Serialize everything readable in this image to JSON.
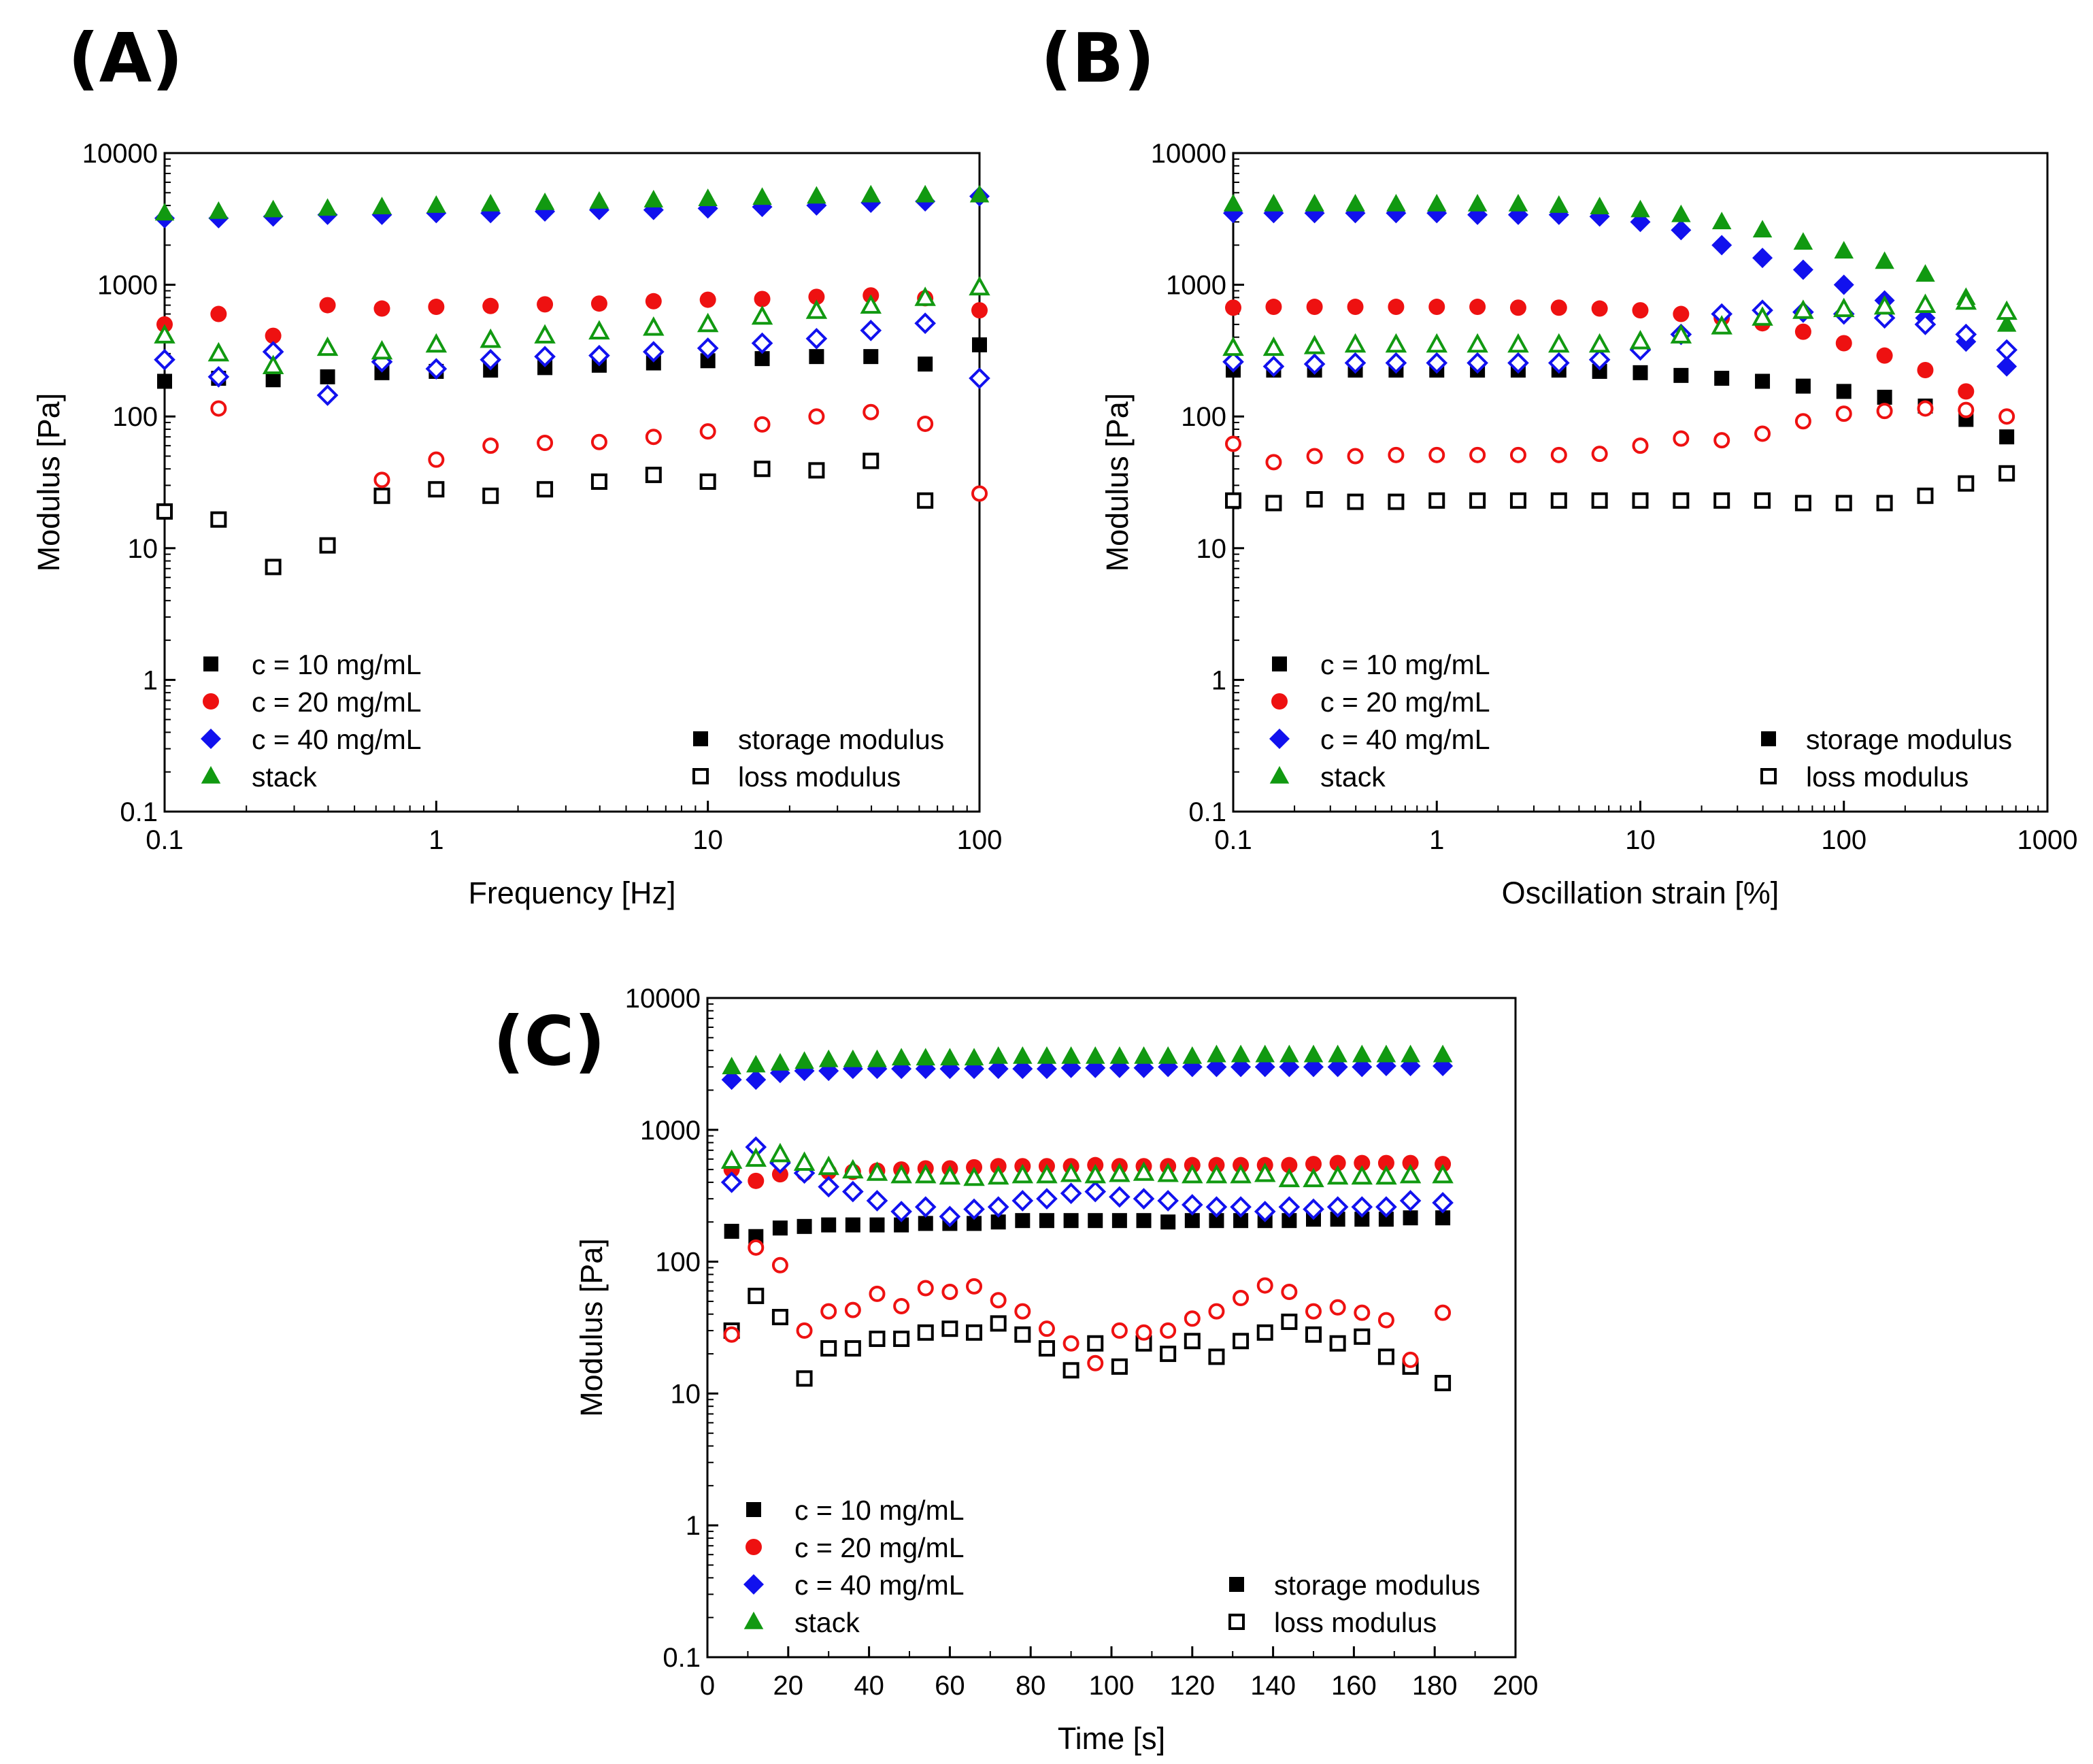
{
  "colors": {
    "c10": "#000000",
    "c20": "#ee1111",
    "c40": "#1111ee",
    "stack": "#119911"
  },
  "chart_data": [
    {
      "panel": "(A)",
      "type": "scatter",
      "xlabel": "Frequency [Hz]",
      "ylabel": "Modulus [Pa]",
      "xscale": "log",
      "yscale": "log",
      "xlim": [
        0.1,
        100
      ],
      "ylim": [
        0.1,
        10000
      ],
      "xticks": [
        "0.1",
        "1",
        "10",
        "100"
      ],
      "yticks": [
        "0.1",
        "1",
        "10",
        "100",
        "1000",
        "10000"
      ],
      "grid": false,
      "legend_series": [
        "c = 10 mg/mL",
        "c = 20 mg/mL",
        "c = 40 mg/mL",
        "stack"
      ],
      "legend_markers": [
        "storage modulus",
        "loss modulus"
      ],
      "x": [
        0.1,
        0.158,
        0.251,
        0.398,
        0.631,
        1,
        1.585,
        2.512,
        3.981,
        6.31,
        10,
        15.85,
        25.12,
        39.81,
        63.1,
        100
      ],
      "series": [
        {
          "name": "c = 10 mg/mL",
          "modulus": "storage",
          "color": "c10",
          "marker": "square",
          "values": [
            185,
            195,
            190,
            200,
            215,
            220,
            225,
            235,
            245,
            255,
            265,
            275,
            285,
            285,
            250,
            350
          ]
        },
        {
          "name": "c = 10 mg/mL",
          "modulus": "loss",
          "color": "c10",
          "marker": "square",
          "values": [
            19,
            16.5,
            7.2,
            10.5,
            25,
            28,
            25,
            28,
            32,
            36,
            32,
            40,
            39,
            46,
            23,
            null
          ]
        },
        {
          "name": "c = 20 mg/mL",
          "modulus": "storage",
          "color": "c20",
          "marker": "circle",
          "values": [
            500,
            600,
            410,
            700,
            660,
            680,
            690,
            710,
            720,
            750,
            770,
            780,
            810,
            830,
            790,
            640
          ]
        },
        {
          "name": "c = 20 mg/mL",
          "modulus": "loss",
          "color": "c20",
          "marker": "circle",
          "values": [
            null,
            115,
            null,
            null,
            33,
            47,
            60,
            63,
            64,
            70,
            77,
            87,
            100,
            108,
            88,
            26
          ]
        },
        {
          "name": "c = 40 mg/mL",
          "modulus": "storage",
          "color": "c40",
          "marker": "diamond",
          "values": [
            3200,
            3200,
            3300,
            3400,
            3400,
            3500,
            3500,
            3600,
            3700,
            3700,
            3800,
            3900,
            4000,
            4200,
            4300,
            4700
          ]
        },
        {
          "name": "c = 40 mg/mL",
          "modulus": "loss",
          "color": "c40",
          "marker": "diamond",
          "values": [
            270,
            200,
            310,
            145,
            260,
            230,
            270,
            285,
            290,
            310,
            330,
            360,
            390,
            450,
            510,
            195
          ]
        },
        {
          "name": "stack",
          "modulus": "storage",
          "color": "stack",
          "marker": "triangle",
          "values": [
            3500,
            3600,
            3700,
            3800,
            3900,
            4000,
            4100,
            4200,
            4300,
            4400,
            4500,
            4600,
            4700,
            4800,
            4800,
            4800
          ]
        },
        {
          "name": "stack",
          "modulus": "loss",
          "color": "stack",
          "marker": "triangle",
          "values": [
            410,
            300,
            240,
            330,
            310,
            350,
            380,
            410,
            440,
            470,
            500,
            570,
            630,
            690,
            790,
            950
          ]
        }
      ]
    },
    {
      "panel": "(B)",
      "type": "scatter",
      "xlabel": "Oscillation strain [%]",
      "ylabel": "Modulus [Pa]",
      "xscale": "log",
      "yscale": "log",
      "xlim": [
        0.1,
        1000
      ],
      "ylim": [
        0.1,
        10000
      ],
      "xticks": [
        "0.1",
        "1",
        "10",
        "100",
        "1000"
      ],
      "yticks": [
        "0.1",
        "1",
        "10",
        "100",
        "1000",
        "10000"
      ],
      "grid": false,
      "legend_series": [
        "c = 10 mg/mL",
        "c = 20 mg/mL",
        "c = 40 mg/mL",
        "stack"
      ],
      "legend_markers": [
        "storage modulus",
        "loss modulus"
      ],
      "x": [
        0.1,
        0.158,
        0.251,
        0.398,
        0.631,
        1,
        1.585,
        2.512,
        3.981,
        6.31,
        10,
        15.85,
        25.12,
        39.81,
        63.1,
        100,
        158.5,
        251.2,
        398.1,
        631
      ],
      "series": [
        {
          "name": "c = 10 mg/mL",
          "modulus": "storage",
          "color": "c10",
          "marker": "square",
          "values": [
            225,
            225,
            225,
            225,
            225,
            225,
            225,
            225,
            225,
            220,
            215,
            205,
            195,
            185,
            170,
            155,
            140,
            120,
            95,
            70
          ]
        },
        {
          "name": "c = 10 mg/mL",
          "modulus": "loss",
          "color": "c10",
          "marker": "square",
          "values": [
            23,
            22,
            23.5,
            22.5,
            22.5,
            23,
            23,
            23,
            23,
            23,
            23,
            23,
            23,
            23,
            22,
            22,
            22,
            25,
            31,
            37
          ]
        },
        {
          "name": "c = 20 mg/mL",
          "modulus": "storage",
          "color": "c20",
          "marker": "circle",
          "values": [
            670,
            680,
            680,
            680,
            680,
            680,
            680,
            670,
            670,
            660,
            640,
            600,
            560,
            510,
            440,
            360,
            290,
            225,
            155,
            null
          ]
        },
        {
          "name": "c = 20 mg/mL",
          "modulus": "loss",
          "color": "c20",
          "marker": "circle",
          "values": [
            62,
            45,
            50,
            50,
            51,
            51,
            51,
            51,
            51,
            52,
            60,
            68,
            66,
            74,
            92,
            105,
            110,
            115,
            112,
            100
          ]
        },
        {
          "name": "c = 40 mg/mL",
          "modulus": "storage",
          "color": "c40",
          "marker": "diamond",
          "values": [
            3500,
            3500,
            3500,
            3500,
            3500,
            3500,
            3400,
            3400,
            3400,
            3300,
            3000,
            2600,
            2000,
            1600,
            1300,
            1000,
            760,
            560,
            370,
            240
          ]
        },
        {
          "name": "c = 40 mg/mL",
          "modulus": "loss",
          "color": "c40",
          "marker": "diamond",
          "values": [
            260,
            240,
            250,
            255,
            255,
            255,
            255,
            255,
            255,
            270,
            320,
            420,
            600,
            640,
            620,
            600,
            560,
            500,
            420,
            320
          ]
        },
        {
          "name": "stack",
          "modulus": "storage",
          "color": "stack",
          "marker": "triangle",
          "values": [
            4100,
            4100,
            4100,
            4100,
            4100,
            4100,
            4100,
            4100,
            4000,
            3900,
            3700,
            3400,
            3000,
            2600,
            2100,
            1800,
            1500,
            1200,
            800,
            500
          ]
        },
        {
          "name": "stack",
          "modulus": "loss",
          "color": "stack",
          "marker": "triangle",
          "values": [
            330,
            330,
            340,
            350,
            350,
            350,
            350,
            350,
            350,
            350,
            370,
            410,
            480,
            560,
            630,
            650,
            680,
            700,
            740,
            620
          ]
        }
      ]
    },
    {
      "panel": "(C)",
      "type": "scatter",
      "xlabel": "Time [s]",
      "ylabel": "Modulus [Pa]",
      "xscale": "linear",
      "yscale": "log",
      "xlim": [
        0,
        200
      ],
      "ylim": [
        0.1,
        10000
      ],
      "xticks": [
        "0",
        "20",
        "40",
        "60",
        "80",
        "100",
        "120",
        "140",
        "160",
        "180",
        "200"
      ],
      "yticks": [
        "0.1",
        "1",
        "10",
        "100",
        "1000",
        "10000"
      ],
      "grid": false,
      "legend_series": [
        "c = 10 mg/mL",
        "c = 20 mg/mL",
        "c = 40 mg/mL",
        "stack"
      ],
      "legend_markers": [
        "storage modulus",
        "loss modulus"
      ],
      "x": [
        6,
        12,
        18,
        24,
        30,
        36,
        42,
        48,
        54,
        60,
        66,
        72,
        78,
        84,
        90,
        96,
        102,
        108,
        114,
        120,
        126,
        132,
        138,
        144,
        150,
        156,
        162,
        168,
        174,
        182
      ],
      "series": [
        {
          "name": "c = 10 mg/mL",
          "modulus": "storage",
          "color": "c10",
          "marker": "square",
          "values": [
            170,
            155,
            180,
            185,
            190,
            190,
            190,
            190,
            195,
            195,
            195,
            200,
            205,
            205,
            205,
            205,
            205,
            205,
            200,
            205,
            205,
            205,
            205,
            205,
            210,
            210,
            210,
            210,
            215,
            215
          ]
        },
        {
          "name": "c = 10 mg/mL",
          "modulus": "loss",
          "color": "c10",
          "marker": "square",
          "values": [
            30,
            55,
            38,
            13,
            22,
            22,
            26,
            26,
            29,
            31,
            29,
            34,
            28,
            22,
            15,
            24,
            16,
            24,
            20,
            25,
            19,
            25,
            29,
            35,
            28,
            24,
            27,
            19,
            16,
            12
          ]
        },
        {
          "name": "c = 20 mg/mL",
          "modulus": "storage",
          "color": "c20",
          "marker": "circle",
          "values": [
            500,
            410,
            460,
            470,
            480,
            480,
            490,
            500,
            510,
            510,
            520,
            530,
            530,
            530,
            530,
            540,
            530,
            530,
            530,
            540,
            540,
            540,
            540,
            540,
            550,
            560,
            560,
            560,
            560,
            550
          ]
        },
        {
          "name": "c = 20 mg/mL",
          "modulus": "loss",
          "color": "c20",
          "marker": "circle",
          "values": [
            28,
            128,
            94,
            30,
            42,
            43,
            57,
            46,
            63,
            59,
            65,
            51,
            42,
            31,
            24,
            17,
            30,
            29,
            30,
            37,
            42,
            53,
            66,
            59,
            42,
            45,
            41,
            36,
            18,
            41
          ]
        },
        {
          "name": "c = 40 mg/mL",
          "modulus": "storage",
          "color": "c40",
          "marker": "diamond",
          "values": [
            2400,
            2400,
            2700,
            2800,
            2800,
            2900,
            2900,
            2900,
            2900,
            2900,
            2900,
            2900,
            2900,
            2900,
            2950,
            2950,
            2950,
            2950,
            3000,
            3000,
            3000,
            3000,
            3000,
            3000,
            3000,
            3000,
            3000,
            3050,
            3050,
            3050
          ]
        },
        {
          "name": "c = 40 mg/mL",
          "modulus": "loss",
          "color": "c40",
          "marker": "diamond",
          "values": [
            400,
            740,
            560,
            470,
            370,
            340,
            290,
            240,
            260,
            220,
            250,
            260,
            290,
            300,
            330,
            340,
            310,
            300,
            290,
            270,
            260,
            260,
            240,
            260,
            250,
            260,
            260,
            260,
            290,
            280
          ]
        },
        {
          "name": "stack",
          "modulus": "storage",
          "color": "stack",
          "marker": "triangle",
          "values": [
            3000,
            3100,
            3200,
            3300,
            3400,
            3400,
            3400,
            3500,
            3500,
            3500,
            3500,
            3600,
            3600,
            3600,
            3600,
            3600,
            3600,
            3600,
            3600,
            3600,
            3700,
            3700,
            3700,
            3700,
            3700,
            3700,
            3700,
            3700,
            3700,
            3700
          ]
        },
        {
          "name": "stack",
          "modulus": "loss",
          "color": "stack",
          "marker": "triangle",
          "values": [
            580,
            600,
            650,
            560,
            520,
            490,
            470,
            450,
            450,
            440,
            430,
            440,
            450,
            450,
            460,
            450,
            460,
            470,
            460,
            450,
            450,
            450,
            460,
            420,
            420,
            440,
            440,
            440,
            450,
            450
          ]
        }
      ]
    }
  ]
}
